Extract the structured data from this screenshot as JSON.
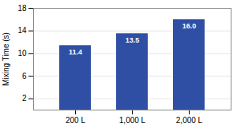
{
  "chart_data": {
    "type": "bar",
    "categories": [
      "200 L",
      "1,000 L",
      "2,000 L"
    ],
    "values": [
      11.4,
      13.5,
      16.0
    ],
    "value_labels": [
      "11.4",
      "13.5",
      "16.0"
    ],
    "data_labels": true,
    "color": "#2E4FA3",
    "ylabel": "Mixing Time (s)",
    "ylim": [
      0,
      18
    ],
    "yticks": [
      2,
      6,
      10,
      14,
      18
    ],
    "grid": true
  }
}
